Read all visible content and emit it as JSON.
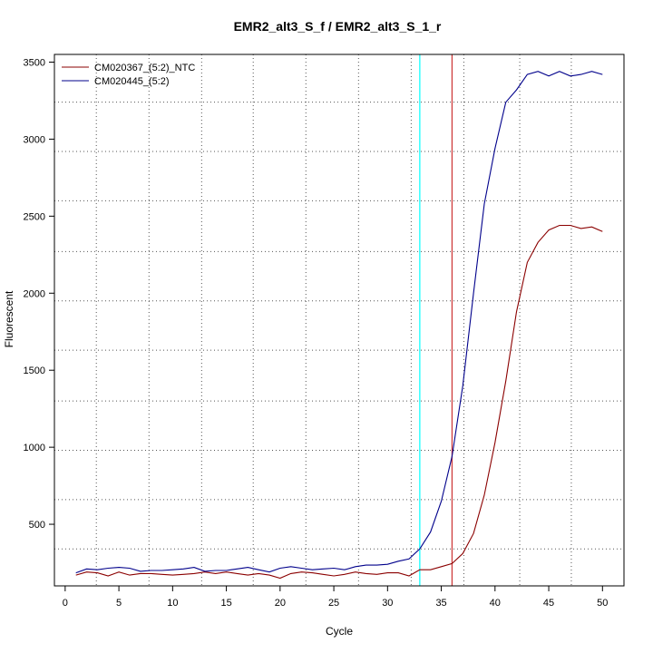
{
  "chart_data": {
    "type": "line",
    "title": "EMR2_alt3_S_f / EMR2_alt3_S_1_r",
    "xlabel": "Cycle",
    "ylabel": "Fluorescent",
    "xlim": [
      -1,
      52
    ],
    "ylim": [
      100,
      3550
    ],
    "x_ticks": [
      0,
      5,
      10,
      15,
      20,
      25,
      30,
      35,
      40,
      45,
      50
    ],
    "y_ticks": [
      500,
      1000,
      1500,
      2000,
      2500,
      3000,
      3500
    ],
    "grid_x": [
      2.9,
      7.8,
      12.7,
      17.5,
      22.4,
      27.3,
      32.2,
      37.1,
      42.3,
      47.1,
      52
    ],
    "grid_y": [
      340,
      660,
      980,
      1300,
      1630,
      1950,
      2270,
      2600,
      2920,
      3240
    ],
    "vlines": [
      {
        "x": 33,
        "color": "#00ffff"
      },
      {
        "x": 36,
        "color": "#cc3333"
      }
    ],
    "legend_position": "top-left",
    "x": [
      1,
      2,
      3,
      4,
      5,
      6,
      7,
      8,
      9,
      10,
      11,
      12,
      13,
      14,
      15,
      16,
      17,
      18,
      19,
      20,
      21,
      22,
      23,
      24,
      25,
      26,
      27,
      28,
      29,
      30,
      31,
      32,
      33,
      34,
      35,
      36,
      37,
      38,
      39,
      40,
      41,
      42,
      43,
      44,
      45,
      46,
      47,
      48,
      49,
      50
    ],
    "series": [
      {
        "name": "CM020367_(5:2)_NTC",
        "color": "#8b0000",
        "values": [
          170,
          190,
          185,
          165,
          190,
          170,
          180,
          180,
          175,
          170,
          175,
          180,
          190,
          180,
          190,
          180,
          170,
          180,
          170,
          150,
          180,
          190,
          185,
          175,
          165,
          175,
          190,
          180,
          175,
          185,
          185,
          165,
          205,
          205,
          225,
          245,
          310,
          440,
          690,
          1030,
          1430,
          1880,
          2200,
          2330,
          2410,
          2440,
          2440,
          2420,
          2430,
          2400
        ]
      },
      {
        "name": "CM020445_(5:2)",
        "color": "#00008b",
        "values": [
          185,
          210,
          205,
          215,
          220,
          215,
          195,
          200,
          200,
          205,
          210,
          220,
          195,
          200,
          200,
          210,
          220,
          205,
          190,
          215,
          225,
          215,
          205,
          210,
          215,
          205,
          225,
          235,
          235,
          240,
          260,
          275,
          340,
          450,
          650,
          940,
          1400,
          2000,
          2580,
          2940,
          3240,
          3320,
          3420,
          3440,
          3410,
          3440,
          3410,
          3420,
          3440,
          3420
        ]
      }
    ]
  }
}
